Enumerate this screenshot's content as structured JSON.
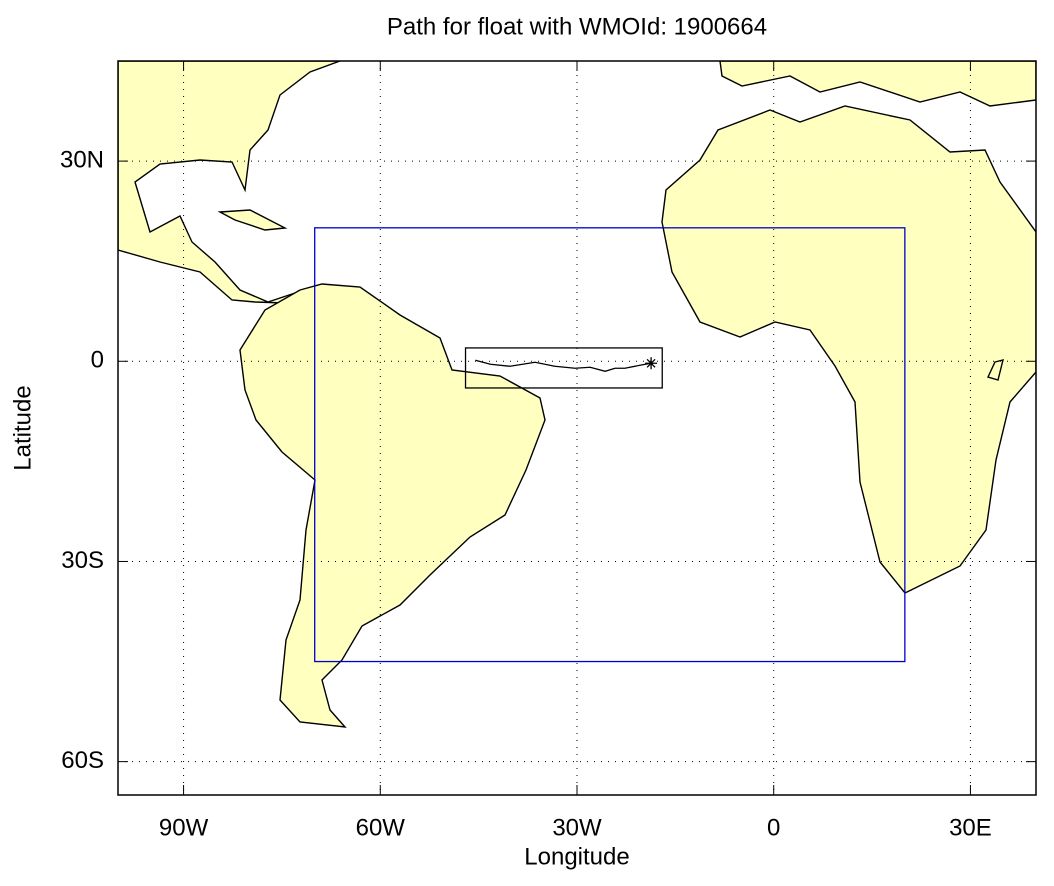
{
  "chart_data": {
    "type": "map",
    "title": "Path for float with WMOId: 1900664",
    "x_label": "Longitude",
    "y_label": "Latitude",
    "xlim": [
      -100,
      40
    ],
    "ylim": [
      -65,
      45
    ],
    "xticks": [
      {
        "value": -90,
        "label": "90W"
      },
      {
        "value": -60,
        "label": "60W"
      },
      {
        "value": -30,
        "label": "30W"
      },
      0,
      {
        "value": 30,
        "label": "30E"
      }
    ],
    "yticks": [
      {
        "value": 30,
        "label": "30N"
      },
      0,
      {
        "value": -30,
        "label": "30S"
      },
      {
        "value": -60,
        "label": "60S"
      }
    ],
    "grid": true,
    "land_color": "#ffffc0",
    "regions": [
      {
        "lon": [
          -70,
          20
        ],
        "lat": [
          -45,
          20
        ],
        "color": "#0000cc"
      },
      {
        "lon": [
          -47,
          -17
        ],
        "lat": [
          -4,
          2
        ],
        "color": "#000000"
      }
    ],
    "float_path": {
      "color": "#000000",
      "lon": [
        -45.5,
        -43.2,
        -40.2,
        -36.4,
        -33.4,
        -30.3,
        -28.0,
        -25.7,
        -24.2,
        -22.7,
        -20.4,
        -18.7
      ],
      "lat": [
        0.15,
        -0.45,
        -0.75,
        -0.15,
        -0.75,
        -1.05,
        -0.9,
        -1.5,
        -1.05,
        -1.05,
        -0.6,
        -0.3
      ]
    }
  }
}
